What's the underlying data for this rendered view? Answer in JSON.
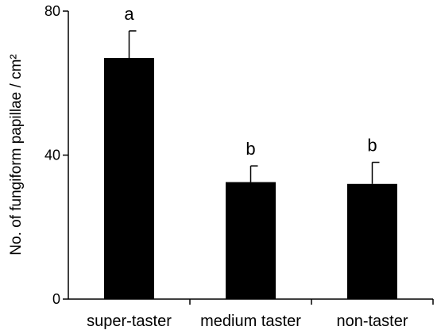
{
  "chart_data": {
    "type": "bar",
    "title": "",
    "xlabel": "",
    "ylabel": "No. of fungiform papillae / cm²",
    "ylim": [
      0,
      80
    ],
    "yticks": [
      0,
      40,
      80
    ],
    "categories": [
      "super-taster",
      "medium taster",
      "non-taster"
    ],
    "values": [
      67,
      32.5,
      32
    ],
    "error_upper": [
      7.5,
      4.5,
      6
    ],
    "significance_letters": [
      "a",
      "b",
      "b"
    ],
    "bar_color": "#000000",
    "grid": false,
    "legend": "none"
  }
}
